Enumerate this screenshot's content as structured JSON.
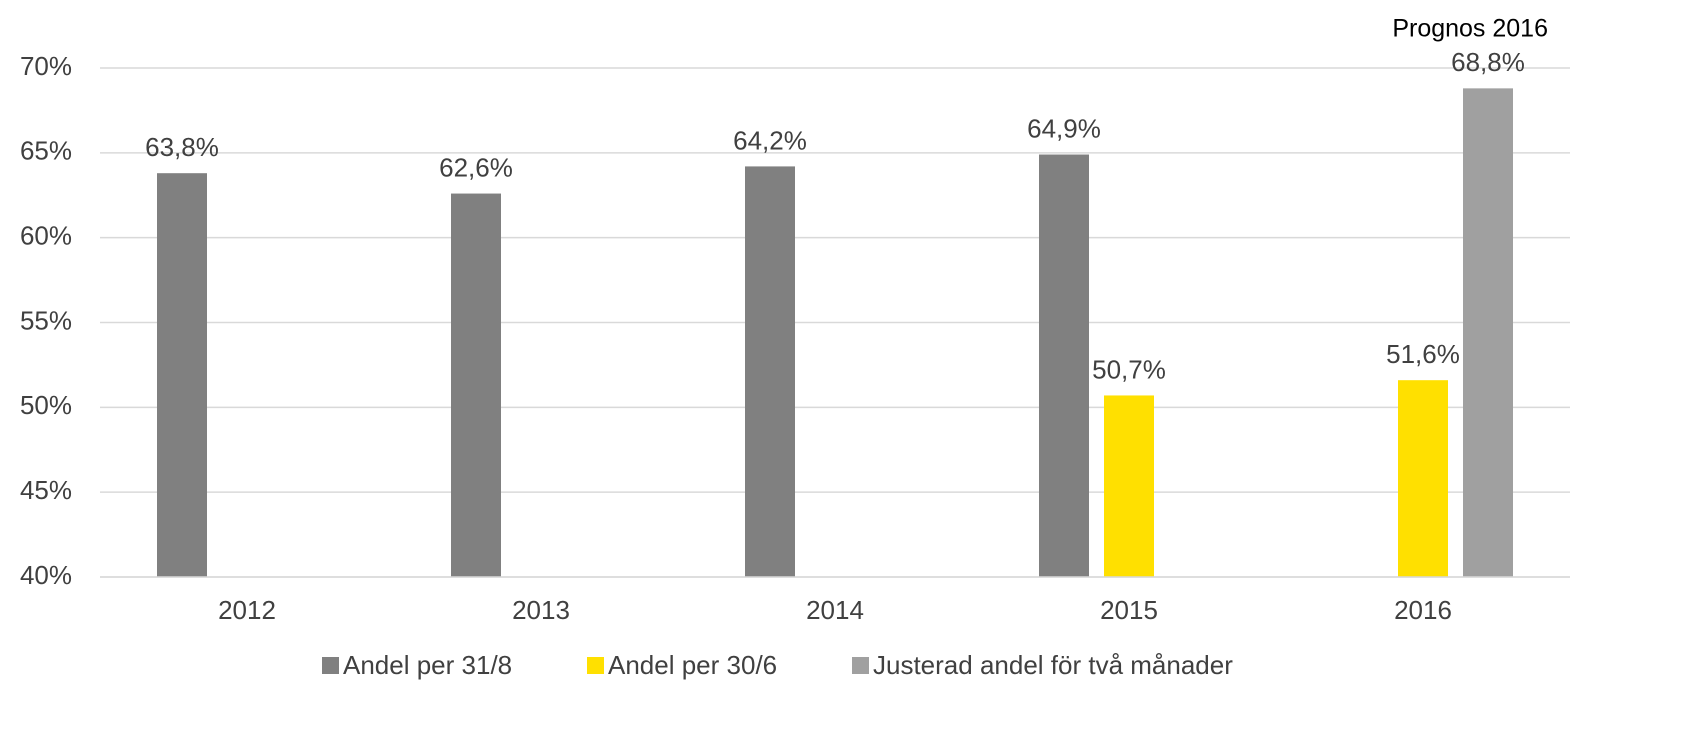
{
  "chart_data": {
    "type": "bar",
    "annotation": "Prognos 2016",
    "categories": [
      "2012",
      "2013",
      "2014",
      "2015",
      "2016"
    ],
    "series": [
      {
        "name": "Andel per 31/8",
        "color": "#808080",
        "values": [
          63.8,
          62.6,
          64.2,
          64.9,
          null
        ],
        "value_labels": [
          "63,8%",
          "62,6%",
          "64,2%",
          "64,9%",
          null
        ]
      },
      {
        "name": "Andel per 30/6",
        "color": "#ffe000",
        "values": [
          null,
          null,
          null,
          50.7,
          51.6
        ],
        "value_labels": [
          null,
          null,
          null,
          "50,7%",
          "51,6%"
        ]
      },
      {
        "name": "Justerad andel för två månader",
        "color": "#a0a0a0",
        "values": [
          null,
          null,
          null,
          null,
          68.8
        ],
        "value_labels": [
          null,
          null,
          null,
          null,
          "68,8%"
        ]
      }
    ],
    "ylim": [
      40,
      70
    ],
    "yticks": [
      {
        "value": 40,
        "label": "40%"
      },
      {
        "value": 45,
        "label": "45%"
      },
      {
        "value": 50,
        "label": "50%"
      },
      {
        "value": 55,
        "label": "55%"
      },
      {
        "value": 60,
        "label": "60%"
      },
      {
        "value": 65,
        "label": "65%"
      },
      {
        "value": 70,
        "label": "70%"
      }
    ],
    "grid": true,
    "legend": "bottom"
  }
}
